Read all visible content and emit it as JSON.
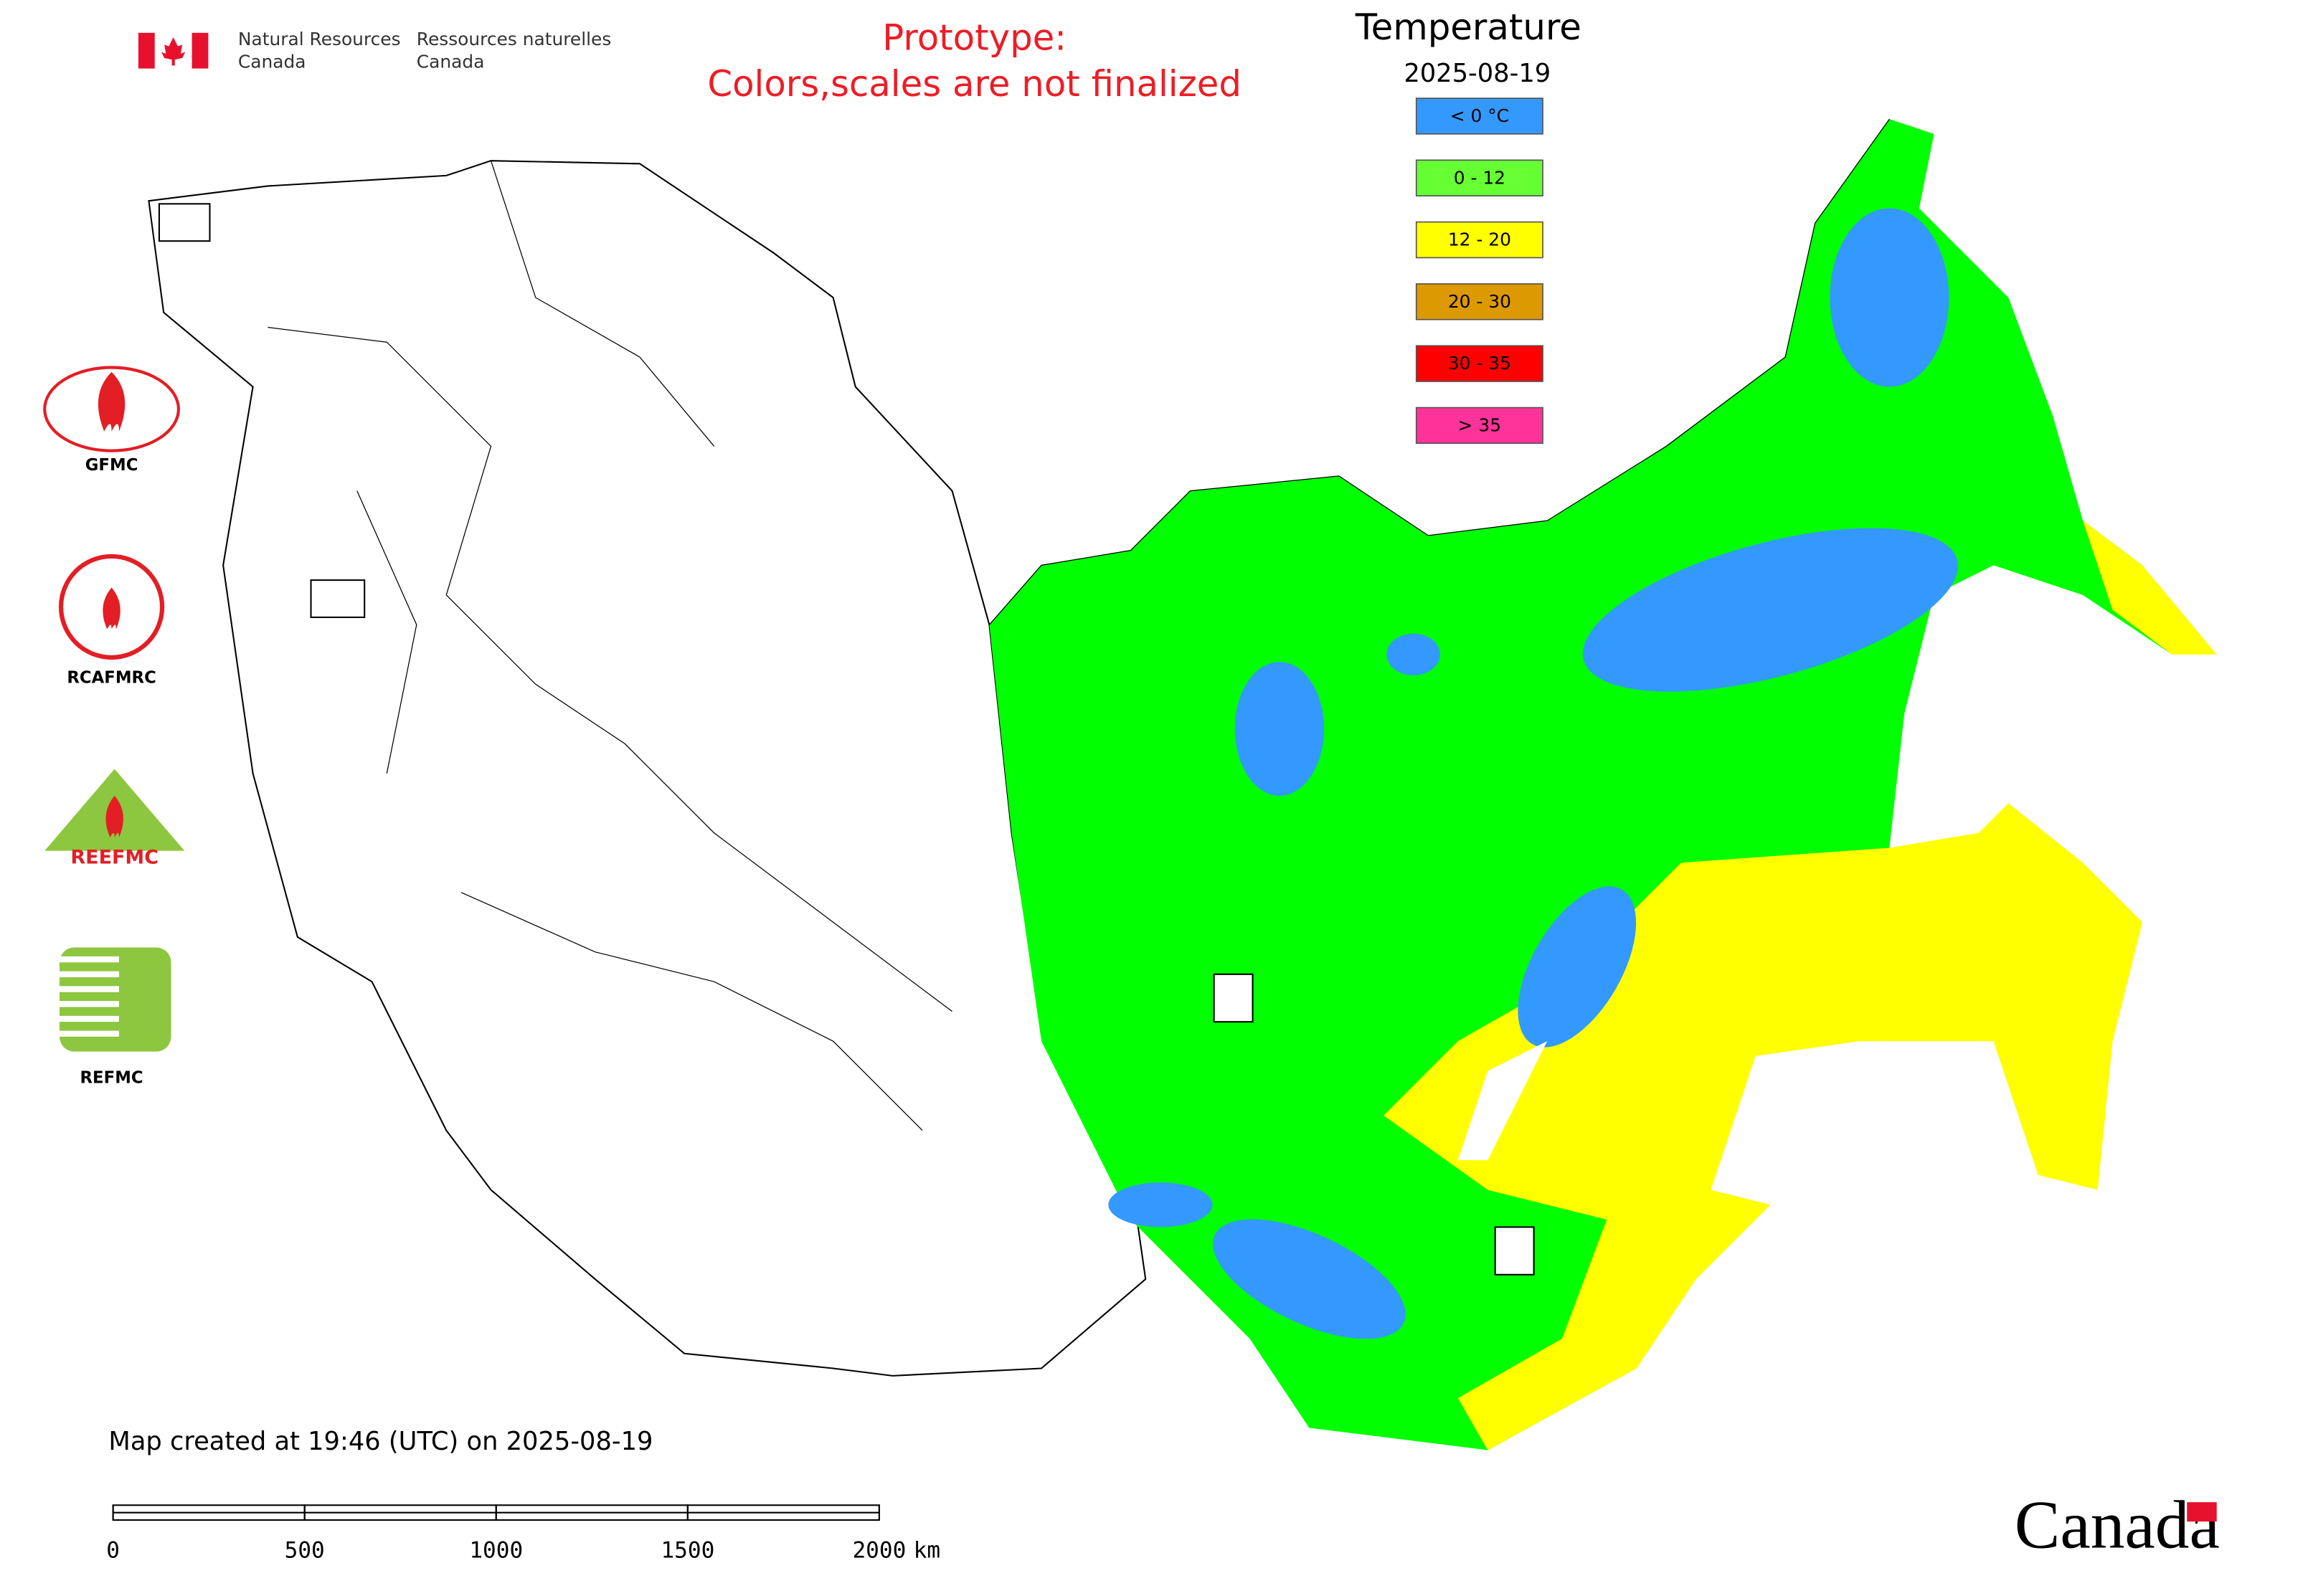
{
  "header": {
    "agency_en_1": "Natural Resources",
    "agency_en_2": "Canada",
    "agency_fr_1": "Ressources naturelles",
    "agency_fr_2": "Canada"
  },
  "notice": {
    "line1": "Prototype:",
    "line2": "Colors,scales are not finalized"
  },
  "legend": {
    "title": "Temperature",
    "date": "2025-08-19",
    "items": [
      {
        "label": "< 0 °C",
        "color": "#3399ff"
      },
      {
        "label": "0 - 12",
        "color": "#66ff33"
      },
      {
        "label": "12 - 20",
        "color": "#ffff00"
      },
      {
        "label": "20 - 30",
        "color": "#dd9900"
      },
      {
        "label": "30 - 35",
        "color": "#ff0000"
      },
      {
        "label": "> 35",
        "color": "#ff3399"
      }
    ]
  },
  "logos": [
    {
      "label": "GFMC"
    },
    {
      "label": "RCAFMRC"
    },
    {
      "label": "REEFMC"
    },
    {
      "label": "REFMC"
    }
  ],
  "footer": {
    "created": "Map created at 19:46 (UTC) on 2025-08-19",
    "scale_bar": {
      "ticks": [
        0,
        500,
        1000,
        1500,
        2000
      ],
      "unit": "km"
    },
    "wordmark": "Canada"
  }
}
